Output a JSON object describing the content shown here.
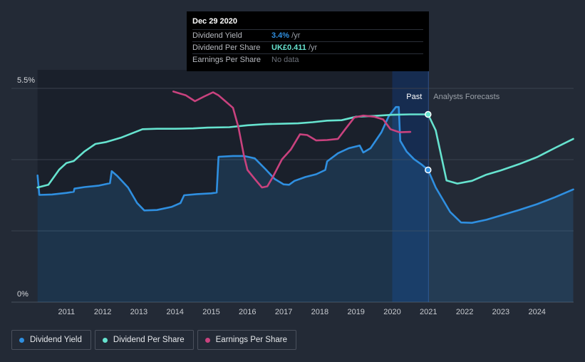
{
  "chart_data": {
    "type": "line",
    "y_axis": {
      "min": 0,
      "max": 5.5,
      "unit": "%",
      "tick_labels": [
        "5.5%",
        "0%"
      ]
    },
    "x_axis": {
      "tick_labels": [
        "2011",
        "2012",
        "2013",
        "2014",
        "2015",
        "2016",
        "2017",
        "2018",
        "2019",
        "2020",
        "2021",
        "2022",
        "2023",
        "2024"
      ],
      "range": [
        2010.2,
        2025.0
      ]
    },
    "past_label": "Past",
    "forecast_label": "Analysts Forecasts",
    "past_end_x": 2021.0,
    "highlight_band": [
      2020.0,
      2021.0
    ],
    "grid": true,
    "legend_position": "bottom-left",
    "series": [
      {
        "name": "Dividend Yield",
        "color": "#2f8fe0",
        "fill": true,
        "points": [
          [
            2010.2,
            3.26
          ],
          [
            2010.25,
            2.76
          ],
          [
            2010.6,
            2.77
          ],
          [
            2011.0,
            2.81
          ],
          [
            2011.2,
            2.84
          ],
          [
            2011.22,
            2.92
          ],
          [
            2011.5,
            2.96
          ],
          [
            2011.9,
            3.0
          ],
          [
            2012.2,
            3.06
          ],
          [
            2012.25,
            3.37
          ],
          [
            2012.4,
            3.25
          ],
          [
            2012.7,
            2.95
          ],
          [
            2012.95,
            2.55
          ],
          [
            2013.15,
            2.36
          ],
          [
            2013.5,
            2.37
          ],
          [
            2013.9,
            2.45
          ],
          [
            2014.15,
            2.55
          ],
          [
            2014.25,
            2.75
          ],
          [
            2014.6,
            2.78
          ],
          [
            2015.0,
            2.8
          ],
          [
            2015.15,
            2.82
          ],
          [
            2015.2,
            3.74
          ],
          [
            2015.6,
            3.76
          ],
          [
            2015.9,
            3.76
          ],
          [
            2016.2,
            3.7
          ],
          [
            2016.5,
            3.42
          ],
          [
            2016.75,
            3.17
          ],
          [
            2017.0,
            3.03
          ],
          [
            2017.15,
            3.02
          ],
          [
            2017.3,
            3.12
          ],
          [
            2017.6,
            3.22
          ],
          [
            2017.9,
            3.29
          ],
          [
            2018.15,
            3.4
          ],
          [
            2018.2,
            3.62
          ],
          [
            2018.5,
            3.83
          ],
          [
            2018.8,
            3.96
          ],
          [
            2019.1,
            4.03
          ],
          [
            2019.2,
            3.85
          ],
          [
            2019.4,
            3.96
          ],
          [
            2019.7,
            4.37
          ],
          [
            2019.9,
            4.78
          ],
          [
            2020.1,
            5.02
          ],
          [
            2020.18,
            5.02
          ],
          [
            2020.22,
            4.15
          ],
          [
            2020.4,
            3.87
          ],
          [
            2020.6,
            3.68
          ],
          [
            2020.8,
            3.55
          ],
          [
            2020.99,
            3.4
          ],
          [
            2021.2,
            2.95
          ],
          [
            2021.6,
            2.32
          ],
          [
            2021.9,
            2.05
          ],
          [
            2022.2,
            2.04
          ],
          [
            2022.6,
            2.12
          ],
          [
            2023.0,
            2.23
          ],
          [
            2023.5,
            2.37
          ],
          [
            2024.0,
            2.52
          ],
          [
            2024.5,
            2.7
          ],
          [
            2025.0,
            2.9
          ]
        ],
        "highlight_point": [
          2020.99,
          3.4
        ]
      },
      {
        "name": "Dividend Per Share",
        "color": "#66e3cf",
        "fill": false,
        "points": [
          [
            2010.2,
            2.95
          ],
          [
            2010.5,
            3.02
          ],
          [
            2010.8,
            3.41
          ],
          [
            2011.0,
            3.58
          ],
          [
            2011.2,
            3.63
          ],
          [
            2011.5,
            3.88
          ],
          [
            2011.8,
            4.07
          ],
          [
            2012.1,
            4.12
          ],
          [
            2012.5,
            4.23
          ],
          [
            2012.8,
            4.34
          ],
          [
            2013.1,
            4.45
          ],
          [
            2013.5,
            4.46
          ],
          [
            2014.0,
            4.46
          ],
          [
            2014.5,
            4.47
          ],
          [
            2014.9,
            4.49
          ],
          [
            2015.5,
            4.5
          ],
          [
            2016.0,
            4.55
          ],
          [
            2016.5,
            4.58
          ],
          [
            2017.0,
            4.59
          ],
          [
            2017.4,
            4.6
          ],
          [
            2017.8,
            4.63
          ],
          [
            2018.2,
            4.67
          ],
          [
            2018.6,
            4.68
          ],
          [
            2019.0,
            4.77
          ],
          [
            2019.5,
            4.79
          ],
          [
            2020.0,
            4.82
          ],
          [
            2020.5,
            4.83
          ],
          [
            2020.99,
            4.83
          ],
          [
            2021.2,
            4.42
          ],
          [
            2021.5,
            3.13
          ],
          [
            2021.8,
            3.05
          ],
          [
            2022.2,
            3.12
          ],
          [
            2022.6,
            3.28
          ],
          [
            2023.0,
            3.39
          ],
          [
            2023.5,
            3.55
          ],
          [
            2024.0,
            3.73
          ],
          [
            2024.5,
            3.97
          ],
          [
            2025.0,
            4.2
          ]
        ],
        "highlight_point": [
          2020.99,
          4.83
        ]
      },
      {
        "name": "Earnings Per Share",
        "color": "#c9427e",
        "fill": false,
        "points": [
          [
            2013.95,
            5.42
          ],
          [
            2014.3,
            5.32
          ],
          [
            2014.55,
            5.17
          ],
          [
            2014.8,
            5.29
          ],
          [
            2015.05,
            5.4
          ],
          [
            2015.2,
            5.32
          ],
          [
            2015.4,
            5.16
          ],
          [
            2015.6,
            5.0
          ],
          [
            2015.75,
            4.5
          ],
          [
            2015.9,
            3.78
          ],
          [
            2016.0,
            3.4
          ],
          [
            2016.2,
            3.17
          ],
          [
            2016.4,
            2.95
          ],
          [
            2016.55,
            2.98
          ],
          [
            2016.7,
            3.22
          ],
          [
            2016.95,
            3.67
          ],
          [
            2017.2,
            3.93
          ],
          [
            2017.45,
            4.32
          ],
          [
            2017.65,
            4.3
          ],
          [
            2017.9,
            4.16
          ],
          [
            2018.2,
            4.17
          ],
          [
            2018.5,
            4.2
          ],
          [
            2018.7,
            4.45
          ],
          [
            2018.95,
            4.75
          ],
          [
            2019.2,
            4.8
          ],
          [
            2019.5,
            4.77
          ],
          [
            2019.75,
            4.7
          ],
          [
            2019.95,
            4.45
          ],
          [
            2020.2,
            4.37
          ],
          [
            2020.5,
            4.38
          ]
        ]
      }
    ]
  },
  "tooltip": {
    "date": "Dec 29 2020",
    "rows": [
      {
        "label": "Dividend Yield",
        "value": "3.4%",
        "unit": " /yr"
      },
      {
        "label": "Dividend Per Share",
        "value": "UK£0.411",
        "unit": " /yr"
      },
      {
        "label": "Earnings Per Share",
        "value": "No data"
      }
    ]
  },
  "legend": [
    {
      "label": "Dividend Yield",
      "color": "#2f8fe0"
    },
    {
      "label": "Dividend Per Share",
      "color": "#66e3cf"
    },
    {
      "label": "Earnings Per Share",
      "color": "#c9427e"
    }
  ],
  "colors": {
    "background": "#232a36",
    "past_area": "#1a202b",
    "band": "#16305e",
    "grid": "#3a414d"
  }
}
